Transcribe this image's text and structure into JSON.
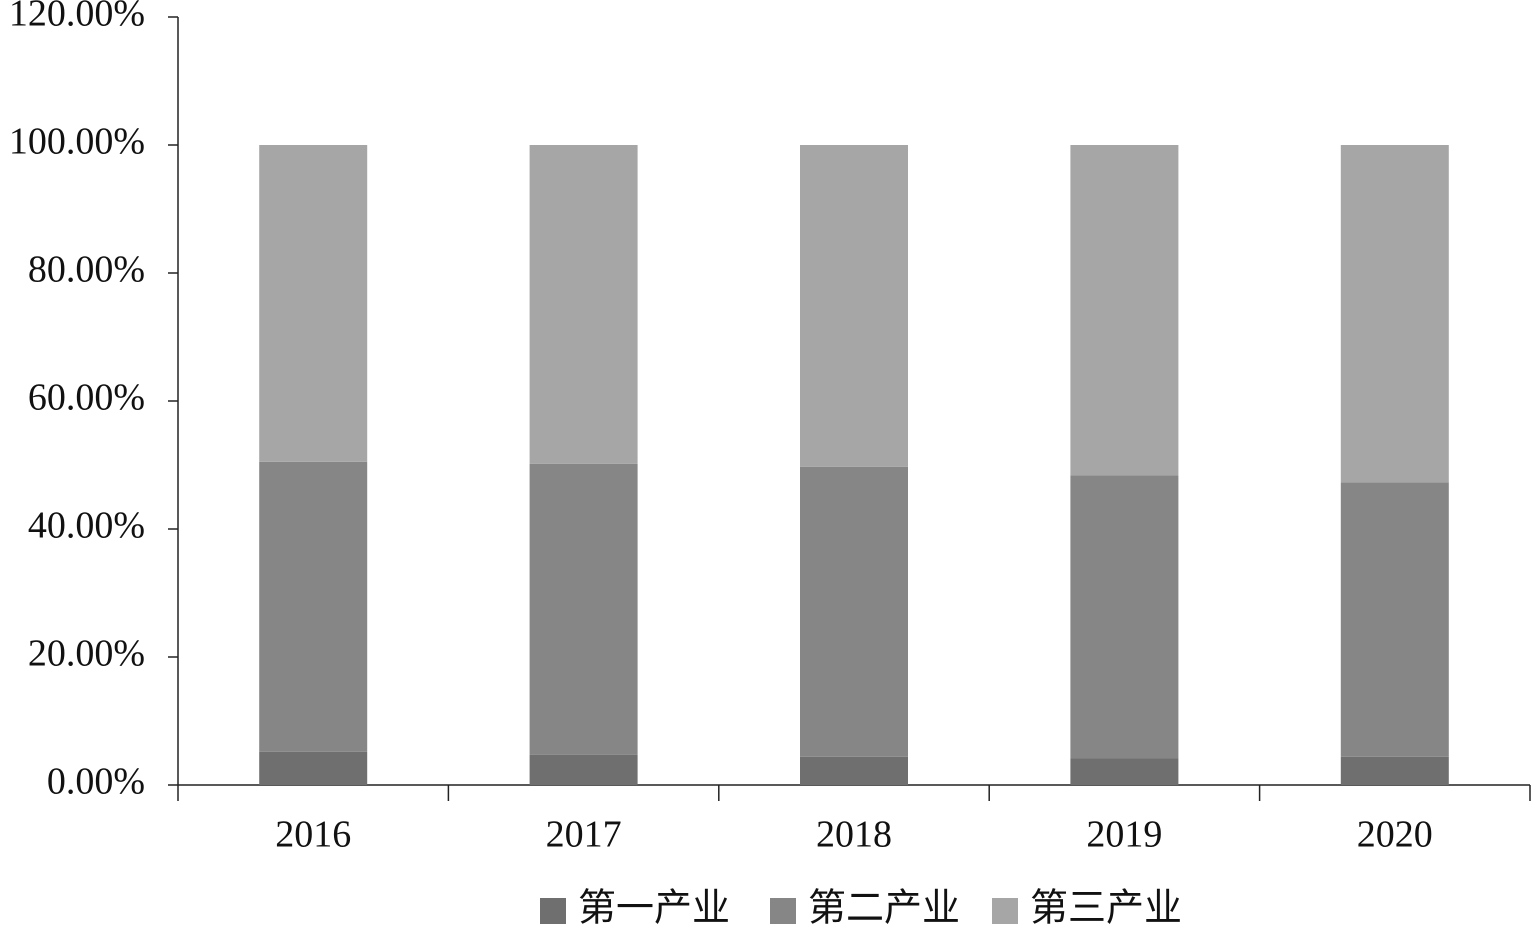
{
  "chart_data": {
    "type": "stacked_bar",
    "categories": [
      "2016",
      "2017",
      "2018",
      "2019",
      "2020"
    ],
    "series": [
      {
        "name": "第一产业",
        "color": "#6f6f6f",
        "values": [
          5.2,
          4.7,
          4.4,
          4.2,
          4.4
        ]
      },
      {
        "name": "第二产业",
        "color": "#868686",
        "values": [
          45.3,
          45.5,
          45.3,
          44.2,
          42.9
        ]
      },
      {
        "name": "第三产业",
        "color": "#a6a6a6",
        "values": [
          49.5,
          49.8,
          50.3,
          51.6,
          52.7
        ]
      }
    ],
    "ylim": [
      0,
      120
    ],
    "yticks": [
      {
        "value": 0,
        "label": "0.00%"
      },
      {
        "value": 20,
        "label": "20.00%"
      },
      {
        "value": 40,
        "label": "40.00%"
      },
      {
        "value": 60,
        "label": "60.00%"
      },
      {
        "value": 80,
        "label": "80.00%"
      },
      {
        "value": 100,
        "label": "100.00%"
      },
      {
        "value": 120,
        "label": "120.00%"
      }
    ],
    "grid": false,
    "legend": "bottom"
  }
}
